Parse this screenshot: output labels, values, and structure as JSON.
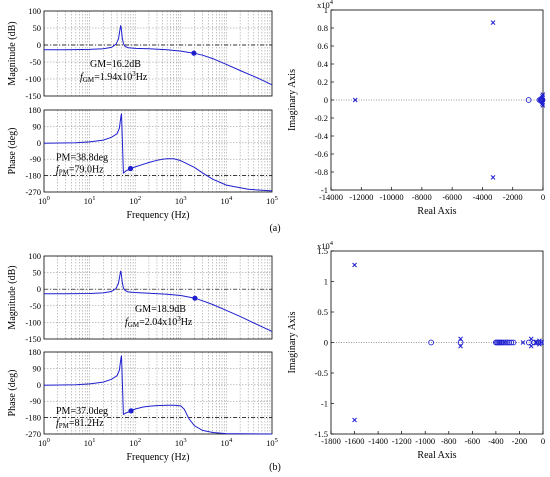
{
  "colors": {
    "curve": "#1f1fd0",
    "frame": "#000000",
    "grid": "#8a8a8a"
  },
  "captions": [
    "(a)",
    "(b)"
  ],
  "chart_data": [
    {
      "type": "line",
      "panel": "a-bode-magnitude",
      "xscale": "log",
      "xlim": [
        1,
        100000
      ],
      "ylim": [
        -150,
        100
      ],
      "ylabel": "Magnitude (dB)",
      "yticks": [
        "100",
        "50",
        "0",
        "-50",
        "-100",
        "-150"
      ],
      "x": [
        1,
        3,
        10,
        20,
        30,
        38,
        43,
        46,
        48,
        50,
        52,
        55,
        60,
        70,
        100,
        200,
        500,
        1000,
        1940,
        3000,
        5000,
        10000,
        20000,
        50000,
        100000
      ],
      "series": [
        {
          "values": [
            -14,
            -14,
            -13,
            -11,
            -7,
            2,
            18,
            42,
            58,
            44,
            22,
            4,
            -4,
            -8,
            -10,
            -11,
            -14,
            -18,
            -24,
            -30,
            -40,
            -57,
            -75,
            -98,
            -117
          ]
        }
      ],
      "annotations": {
        "gm_text": "GM=16.2dB",
        "fgm_label": "f",
        "fgm_sub": "GM",
        "fgm_val": "=1.94x10",
        "fgm_exp": "3",
        "fgm_unit": "Hz",
        "marker_x": 1940,
        "marker_y": -24,
        "ref_y": 0
      }
    },
    {
      "type": "line",
      "panel": "a-bode-phase",
      "xscale": "log",
      "xlim": [
        1,
        100000
      ],
      "ylim": [
        -270,
        180
      ],
      "ylabel": "Phase (deg)",
      "xlabel": "Frequency  (Hz)",
      "yticks": [
        "180",
        "90",
        "0",
        "-90",
        "-180",
        "-270"
      ],
      "xticks": [
        {
          "b": "10",
          "e": "0"
        },
        {
          "b": "10",
          "e": "1"
        },
        {
          "b": "10",
          "e": "2"
        },
        {
          "b": "10",
          "e": "3"
        },
        {
          "b": "10",
          "e": "4"
        },
        {
          "b": "10",
          "e": "5"
        }
      ],
      "x": [
        1,
        5,
        10,
        20,
        30,
        40,
        45,
        47,
        49,
        50,
        55,
        65,
        79,
        100,
        150,
        200,
        300,
        400,
        500,
        700,
        1000,
        2000,
        3000,
        5000,
        10000,
        30000,
        100000
      ],
      "series": [
        {
          "values": [
            -2,
            0,
            5,
            15,
            30,
            50,
            80,
            115,
            150,
            160,
            -165,
            -152,
            -141,
            -132,
            -118,
            -108,
            -96,
            -90,
            -87,
            -88,
            -98,
            -135,
            -165,
            -200,
            -232,
            -255,
            -264
          ]
        }
      ],
      "annotations": {
        "pm_text": "PM=38.8deg",
        "fpm_label": "f",
        "fpm_sub": "PM",
        "fpm_val": "=79.0Hz",
        "marker_x": 79,
        "marker_y": -141,
        "ref_y": -180
      }
    },
    {
      "type": "scatter",
      "panel": "a-pole-zero",
      "xlim": [
        -14000,
        0
      ],
      "ylim": [
        -1,
        1
      ],
      "xlabel": "Real Axis",
      "ylabel": "Imaginary Axis",
      "y_multiplier": "x10",
      "y_multiplier_exp": "4",
      "xticks": [
        "-14000",
        "-12000",
        "-10000",
        "-8000",
        "-6000",
        "-4000",
        "-2000",
        "0"
      ],
      "yticks": [
        "1",
        "0.8",
        "0.6",
        "0.4",
        "0.2",
        "0",
        "-0.2",
        "-0.4",
        "-0.6",
        "-0.8",
        "-1"
      ],
      "poles": [
        [
          -12400,
          0
        ],
        [
          -3300,
          0.86
        ],
        [
          -3300,
          -0.86
        ],
        [
          -80,
          0.02
        ],
        [
          -80,
          -0.02
        ],
        [
          -40,
          0.04
        ],
        [
          -40,
          -0.04
        ],
        [
          -20,
          0
        ],
        [
          -10,
          0.06
        ],
        [
          -10,
          -0.06
        ]
      ],
      "zeros": [
        [
          -950,
          0
        ],
        [
          -230,
          0
        ],
        [
          -150,
          0
        ],
        [
          -100,
          0
        ],
        [
          -60,
          0
        ],
        [
          -30,
          0
        ]
      ]
    },
    {
      "type": "line",
      "panel": "b-bode-magnitude",
      "xscale": "log",
      "xlim": [
        1,
        100000
      ],
      "ylim": [
        -150,
        100
      ],
      "ylabel": "Magnitude (dB)",
      "yticks": [
        "100",
        "50",
        "0",
        "-50",
        "-100",
        "-150"
      ],
      "x": [
        1,
        3,
        10,
        20,
        30,
        38,
        43,
        46,
        48,
        50,
        52,
        55,
        60,
        70,
        100,
        200,
        500,
        1000,
        2040,
        3000,
        5000,
        10000,
        20000,
        50000,
        100000
      ],
      "series": [
        {
          "values": [
            -14,
            -14,
            -13,
            -11,
            -7,
            2,
            18,
            40,
            55,
            42,
            22,
            4,
            -4,
            -8,
            -10,
            -12,
            -15,
            -19,
            -27,
            -35,
            -46,
            -64,
            -82,
            -108,
            -127
          ]
        }
      ],
      "annotations": {
        "gm_text": "GM=18.9dB",
        "fgm_label": "f",
        "fgm_sub": "GM",
        "fgm_val": "=2.04x10",
        "fgm_exp": "3",
        "fgm_unit": "Hz",
        "marker_x": 2040,
        "marker_y": -27,
        "ref_y": 0
      }
    },
    {
      "type": "line",
      "panel": "b-bode-phase",
      "xscale": "log",
      "xlim": [
        1,
        100000
      ],
      "ylim": [
        -270,
        180
      ],
      "ylabel": "Phase (deg)",
      "xlabel": "Frequency  (Hz)",
      "yticks": [
        "180",
        "90",
        "0",
        "-90",
        "-180",
        "-270"
      ],
      "xticks": [
        {
          "b": "10",
          "e": "0"
        },
        {
          "b": "10",
          "e": "1"
        },
        {
          "b": "10",
          "e": "2"
        },
        {
          "b": "10",
          "e": "3"
        },
        {
          "b": "10",
          "e": "4"
        },
        {
          "b": "10",
          "e": "5"
        }
      ],
      "x": [
        1,
        5,
        10,
        20,
        30,
        40,
        45,
        47,
        49,
        50,
        55,
        65,
        81,
        100,
        150,
        200,
        300,
        500,
        700,
        1000,
        1200,
        1500,
        2000,
        3000,
        5000,
        10000,
        100000
      ],
      "series": [
        {
          "values": [
            -2,
            0,
            5,
            15,
            30,
            50,
            80,
            115,
            150,
            160,
            -162,
            -153,
            -143,
            -133,
            -122,
            -118,
            -114,
            -112,
            -112,
            -116,
            -135,
            -185,
            -225,
            -250,
            -262,
            -268,
            -270
          ]
        }
      ],
      "annotations": {
        "pm_text": "PM=37.0deg",
        "fpm_label": "f",
        "fpm_sub": "PM",
        "fpm_val": "=81.2Hz",
        "marker_x": 81.2,
        "marker_y": -143,
        "ref_y": -180
      }
    },
    {
      "type": "scatter",
      "panel": "b-pole-zero",
      "xlim": [
        -1800,
        0
      ],
      "ylim": [
        -1.5,
        1.5
      ],
      "xlabel": "Real Axis",
      "ylabel": "Imaginary Axis",
      "y_multiplier": "x10",
      "y_multiplier_exp": "4",
      "xticks": [
        "-1800",
        "-1600",
        "-1400",
        "-1200",
        "-1000",
        "-800",
        "-600",
        "-400",
        "-200",
        "0"
      ],
      "yticks": [
        "1.5",
        "1",
        "0.5",
        "0",
        "-0.5",
        "-1",
        "-1.5"
      ],
      "poles": [
        [
          -1600,
          1.27
        ],
        [
          -1600,
          -1.27
        ],
        [
          -700,
          0.06
        ],
        [
          -700,
          -0.06
        ],
        [
          -170,
          0
        ],
        [
          -100,
          0.06
        ],
        [
          -100,
          -0.06
        ],
        [
          -60,
          0
        ],
        [
          -30,
          0.03
        ],
        [
          -30,
          -0.03
        ],
        [
          -10,
          0
        ]
      ],
      "zeros": [
        [
          -950,
          0
        ],
        [
          -700,
          0
        ],
        [
          -400,
          0
        ],
        [
          -390,
          0
        ],
        [
          -380,
          0
        ],
        [
          -370,
          0
        ],
        [
          -360,
          0
        ],
        [
          -350,
          0
        ],
        [
          -335,
          0
        ],
        [
          -320,
          0
        ],
        [
          -305,
          0
        ],
        [
          -290,
          0
        ],
        [
          -270,
          0
        ],
        [
          -250,
          0
        ],
        [
          -120,
          0
        ],
        [
          -75,
          0
        ],
        [
          -45,
          0
        ],
        [
          -20,
          0
        ]
      ]
    }
  ]
}
